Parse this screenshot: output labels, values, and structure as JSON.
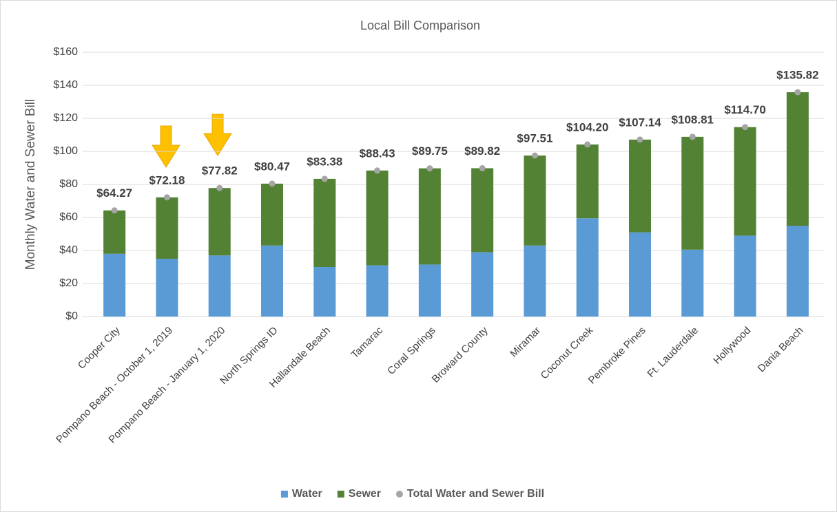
{
  "chart_data": {
    "type": "bar",
    "stacked": true,
    "title": "Local Bill Comparison",
    "y_label": "Monthly Water and Sewer Bill",
    "categories": [
      "Cooper City",
      "Pompano Beach - October 1, 2019",
      "Pompano Beach - January 1, 2020",
      "North Springs ID",
      "Hallandale Beach",
      "Tamarac",
      "Coral Springs",
      "Broward County",
      "Miramar",
      "Coconut Creek",
      "Pembroke Pines",
      "Ft. Lauderdale",
      "Hollywood",
      "Dania Beach"
    ],
    "series": [
      {
        "name": "Water",
        "color": "#5b9bd5",
        "values": [
          38,
          35,
          37,
          43,
          30,
          31,
          31.5,
          39,
          43,
          59.5,
          51,
          40.5,
          49,
          55
        ]
      },
      {
        "name": "Sewer",
        "color": "#548235",
        "values": [
          26.27,
          37.18,
          40.82,
          37.47,
          53.38,
          57.43,
          58.25,
          50.82,
          54.51,
          44.7,
          56.14,
          68.31,
          65.7,
          80.82
        ]
      },
      {
        "name": "Total Water and Sewer Bill",
        "type": "scatter",
        "color": "#a5a5a5",
        "values": [
          64.27,
          72.18,
          77.82,
          80.47,
          83.38,
          88.43,
          89.75,
          89.82,
          97.51,
          104.2,
          107.14,
          108.81,
          114.7,
          135.82
        ],
        "value_labels": [
          "$64.27",
          "$72.18",
          "$77.82",
          "$80.47",
          "$83.38",
          "$88.43",
          "$89.75",
          "$89.82",
          "$97.51",
          "$104.20",
          "$107.14",
          "$108.81",
          "$114.70",
          "$135.82"
        ]
      }
    ],
    "ylim": [
      0,
      160
    ],
    "yticks": [
      {
        "value": 0,
        "label": "$0"
      },
      {
        "value": 20,
        "label": "$20"
      },
      {
        "value": 40,
        "label": "$40"
      },
      {
        "value": 60,
        "label": "$60"
      },
      {
        "value": 80,
        "label": "$80"
      },
      {
        "value": 100,
        "label": "$100"
      },
      {
        "value": 120,
        "label": "$120"
      },
      {
        "value": 140,
        "label": "$140"
      },
      {
        "value": 160,
        "label": "$160"
      }
    ],
    "grid": true,
    "legend": "bottom"
  }
}
